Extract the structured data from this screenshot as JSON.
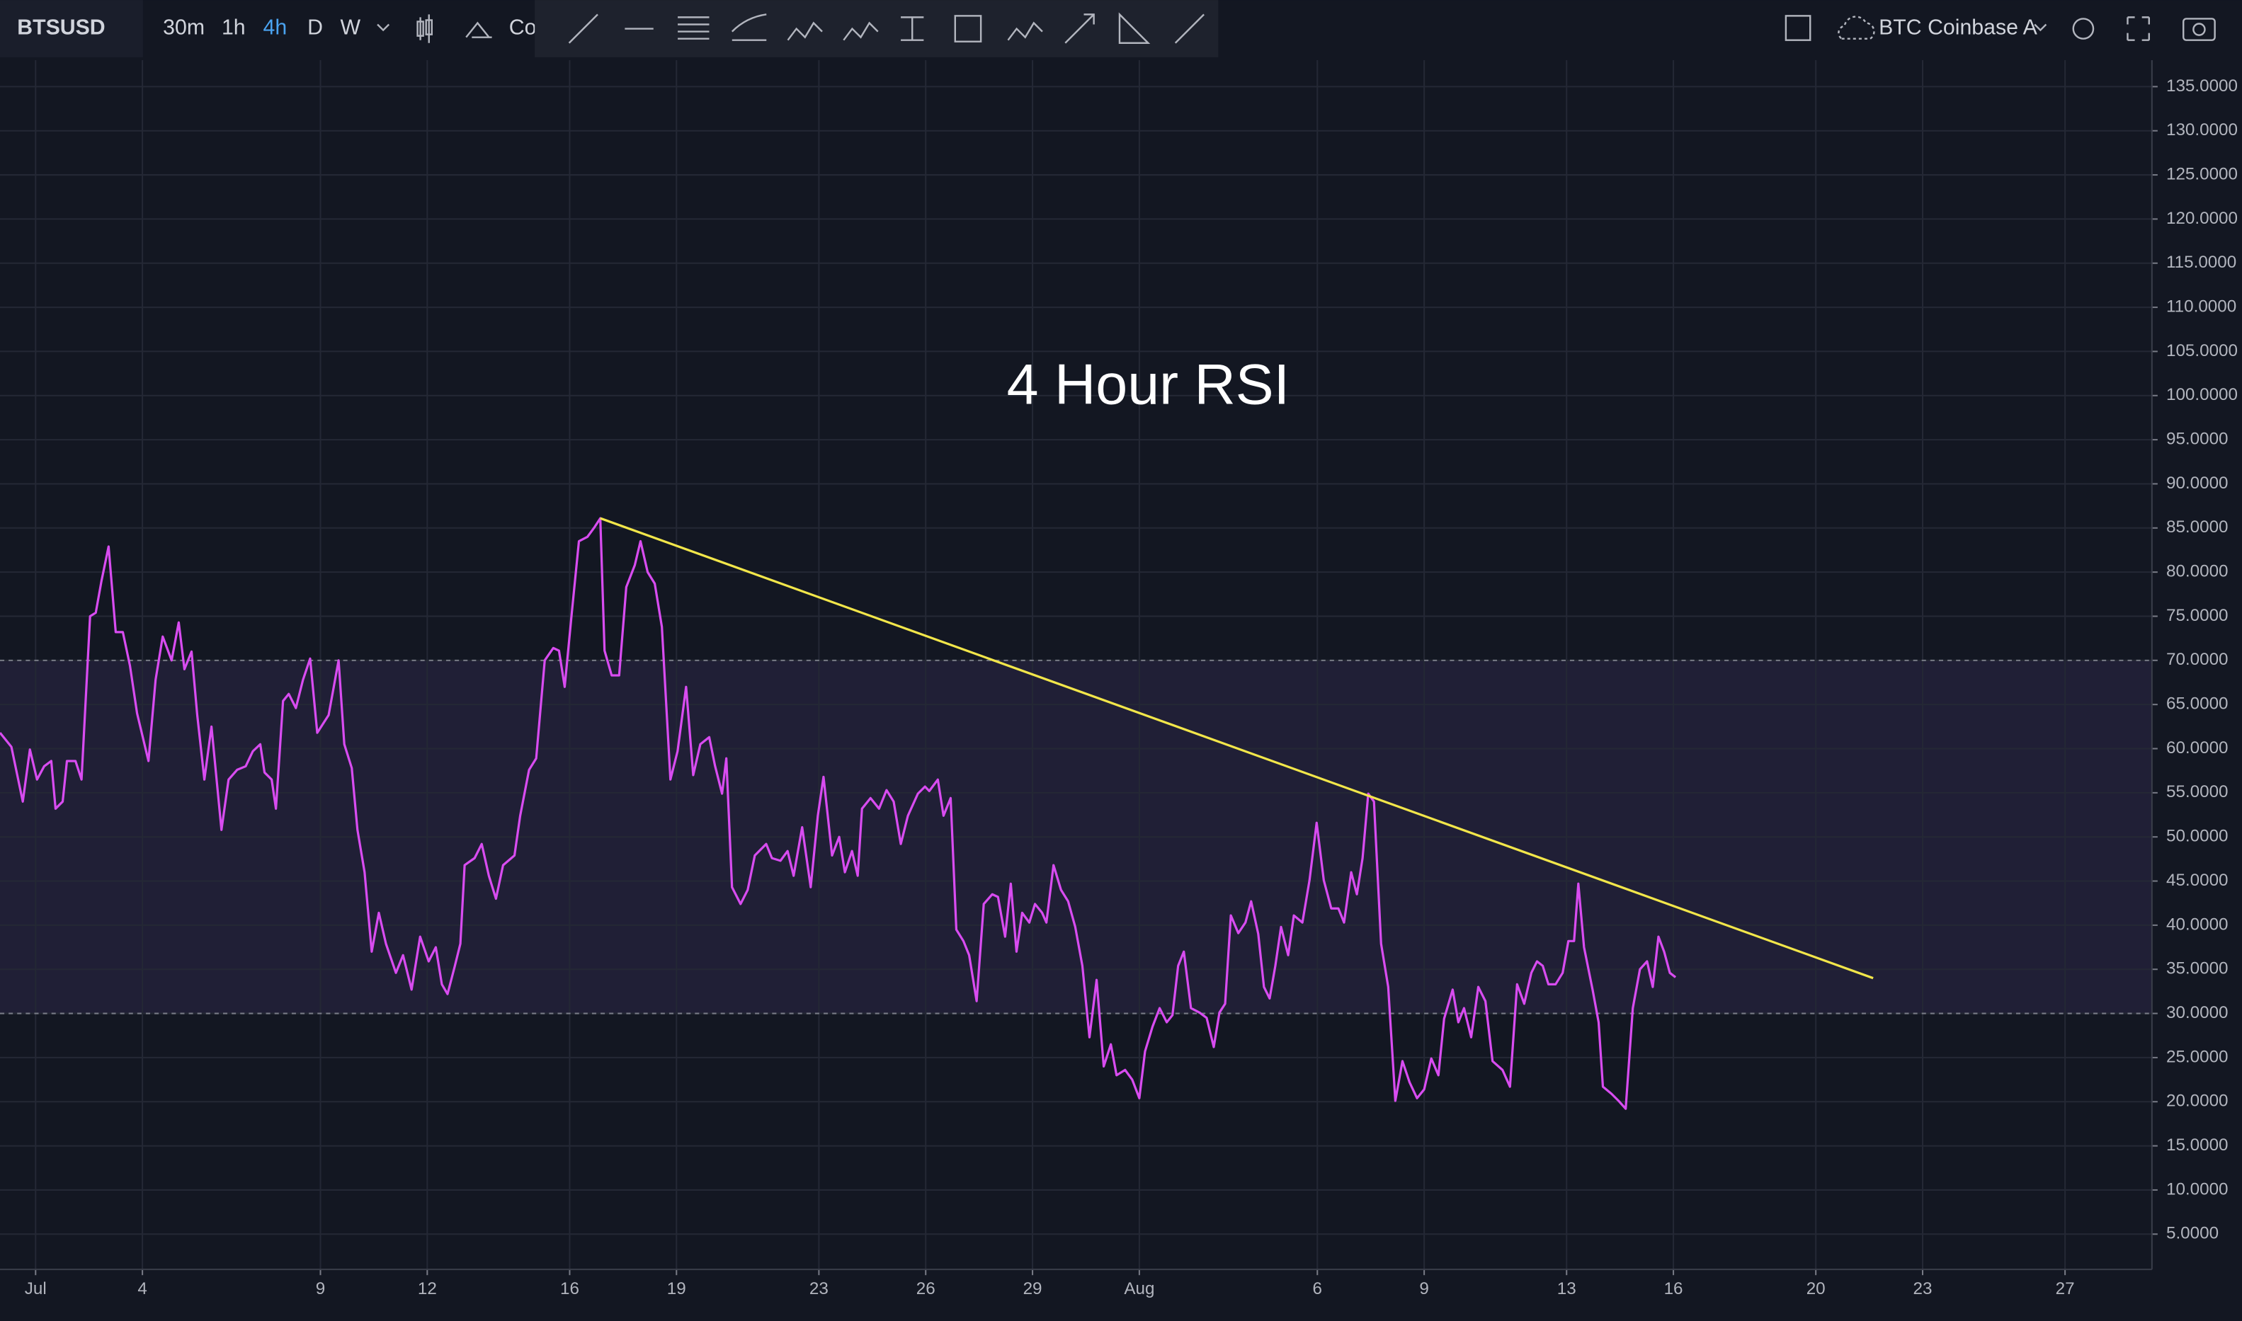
{
  "toolbar": {
    "symbol": "BTSUSD",
    "intervals": [
      "30m",
      "1h",
      "4h",
      "D",
      "W"
    ],
    "compare": "Co",
    "active_interval": "4h",
    "source": "BTC Coinbase A"
  },
  "chart_data": {
    "type": "line",
    "title": "4 Hour RSI",
    "series": [
      {
        "color": "#d84cf0",
        "x": [
          -1.0,
          -0.68,
          -0.36,
          -0.16,
          0.04,
          0.24,
          0.44,
          0.56,
          0.76,
          0.88,
          1.12,
          1.29,
          1.53,
          1.69,
          1.85,
          2.05,
          2.25,
          2.45,
          2.65,
          2.85,
          3.17,
          3.37,
          3.57,
          3.82,
          4.02,
          4.18,
          4.38,
          4.54,
          4.74,
          4.94,
          5.22,
          5.42,
          5.66,
          5.9,
          6.1,
          6.31,
          6.43,
          6.63,
          6.75,
          6.95,
          7.11,
          7.31,
          7.51,
          7.71,
          7.91,
          8.23,
          8.51,
          8.67,
          8.88,
          9.04,
          9.24,
          9.44,
          9.64,
          9.84,
          10.12,
          10.32,
          10.56,
          10.8,
          11.04,
          11.24,
          11.41,
          11.57,
          11.77,
          11.93,
          12.05,
          12.33,
          12.53,
          12.73,
          12.93,
          13.13,
          13.45,
          13.61,
          13.86,
          14.06,
          14.3,
          14.54,
          14.7,
          14.86,
          15.06,
          15.26,
          15.5,
          15.7,
          15.86,
          15.98,
          16.18,
          16.39,
          16.59,
          16.83,
          16.99,
          17.19,
          17.39,
          17.59,
          17.83,
          18.03,
          18.27,
          18.47,
          18.67,
          18.92,
          19.08,
          19.28,
          19.4,
          19.56,
          19.8,
          20.0,
          20.2,
          20.52,
          20.68,
          20.92,
          21.12,
          21.29,
          21.53,
          21.77,
          21.97,
          22.13,
          22.37,
          22.57,
          22.73,
          22.93,
          23.09,
          23.21,
          23.45,
          23.69,
          23.9,
          24.1,
          24.3,
          24.5,
          24.78,
          24.98,
          25.1,
          25.34,
          25.5,
          25.7,
          25.86,
          26.06,
          26.22,
          26.43,
          26.63,
          26.87,
          27.03,
          27.23,
          27.39,
          27.55,
          27.71,
          27.91,
          28.07,
          28.27,
          28.39,
          28.59,
          28.8,
          29.0,
          29.2,
          29.4,
          29.6,
          29.8,
          30.0,
          30.2,
          30.36,
          30.6,
          30.8,
          31.0,
          31.16,
          31.37,
          31.57,
          31.77,
          31.93,
          32.09,
          32.25,
          32.45,
          32.69,
          32.89,
          33.09,
          33.25,
          33.41,
          33.57,
          33.78,
          33.98,
          34.14,
          34.34,
          34.5,
          34.66,
          34.82,
          34.98,
          35.18,
          35.34,
          35.58,
          35.78,
          35.98,
          36.18,
          36.39,
          36.59,
          36.75,
          36.95,
          37.11,
          37.27,
          37.43,
          37.59,
          37.79,
          37.99,
          38.19,
          38.39,
          38.59,
          38.8,
          39.0,
          39.2,
          39.4,
          39.56,
          39.8,
          39.96,
          40.12,
          40.32,
          40.52,
          40.72,
          40.92,
          41.2,
          41.41,
          41.61,
          41.81,
          42.01,
          42.17,
          42.33,
          42.49,
          42.69,
          42.89,
          43.05,
          43.21,
          43.33,
          43.49,
          43.73,
          43.9,
          44.02,
          44.26,
          44.46,
          44.66,
          44.86,
          45.06,
          45.26,
          45.42,
          45.58,
          45.74,
          45.9,
          46.06
        ],
        "values": [
          61.8,
          60.2,
          54,
          59.9,
          56.5,
          58,
          58.6,
          53.2,
          54,
          58.6,
          58.6,
          56.5,
          75,
          75.4,
          79,
          82.9,
          73.2,
          73.2,
          69.4,
          64,
          58.6,
          67.8,
          72.7,
          70,
          74.3,
          69,
          71,
          63.8,
          56.5,
          62.5,
          50.8,
          56.5,
          57.6,
          58,
          59.7,
          60.5,
          57.3,
          56.5,
          53.2,
          65.4,
          66.2,
          64.6,
          67.8,
          70.2,
          61.8,
          63.8,
          70,
          60.5,
          57.8,
          50.8,
          46,
          37,
          41.4,
          37.9,
          34.6,
          36.6,
          32.7,
          38.7,
          35.9,
          37.5,
          33.3,
          32.2,
          35.3,
          37.9,
          46.8,
          47.6,
          49.2,
          45.6,
          43,
          46.8,
          47.9,
          52.4,
          57.6,
          58.9,
          70,
          71.4,
          71.1,
          67,
          75.4,
          83.5,
          84,
          85.1,
          86.1,
          71.1,
          68.3,
          68.3,
          78.3,
          80.8,
          83.5,
          80,
          78.7,
          73.8,
          56.5,
          59.7,
          67,
          57,
          60.5,
          61.3,
          58.1,
          54.9,
          58.9,
          44.3,
          42.4,
          44,
          47.9,
          49.2,
          47.6,
          47.3,
          48.4,
          45.6,
          51.1,
          44.3,
          52.4,
          56.8,
          47.9,
          50,
          46,
          48.4,
          45.6,
          53.2,
          54.4,
          53.2,
          55.3,
          54,
          49.2,
          52.4,
          54.9,
          55.7,
          55.2,
          56.5,
          52.4,
          54.4,
          39.5,
          38.2,
          36.6,
          31.4,
          42.4,
          43.5,
          43.2,
          38.7,
          44.7,
          37,
          41.4,
          40.3,
          42.4,
          41.4,
          40.3,
          46.8,
          44,
          42.7,
          39.8,
          35.4,
          27.3,
          33.8,
          24,
          26.5,
          23,
          23.6,
          22.5,
          20.4,
          25.7,
          28.5,
          30.6,
          29,
          29.8,
          35.4,
          37,
          30.6,
          30.1,
          29.5,
          26.2,
          30.1,
          31.1,
          41.1,
          39.1,
          40.3,
          42.7,
          39,
          33,
          31.7,
          35.4,
          39.8,
          36.6,
          41.1,
          40.3,
          45.1,
          51.6,
          45.1,
          41.9,
          41.9,
          40.3,
          46,
          43.5,
          47.6,
          54.9,
          54,
          37.9,
          33,
          20.1,
          24.6,
          22.2,
          20.4,
          21.4,
          24.9,
          23,
          29.4,
          32.7,
          29,
          30.6,
          27.3,
          33,
          31.4,
          24.6,
          23.6,
          21.7,
          33.3,
          31.1,
          34.6,
          35.9,
          35.4,
          33.3,
          33.3,
          34.6,
          38.2,
          38.2,
          44.7,
          37.5,
          32.7,
          29,
          21.7,
          20.9,
          20.1,
          19.2,
          30.6,
          35,
          35.9,
          33,
          38.7,
          37,
          34.6,
          34.1
        ]
      }
    ],
    "trendline": {
      "color": "#f2e64a",
      "x": [
        15.86,
        51.61
      ],
      "values": [
        86.1,
        34.0
      ]
    },
    "band": {
      "upper": 70,
      "lower": 30,
      "color": "#7e57c2"
    },
    "xlim": [
      -1,
      59.44
    ],
    "xticks": [
      {
        "value": 0,
        "label": "Jul"
      },
      {
        "value": 3,
        "label": "4"
      },
      {
        "value": 8,
        "label": "9"
      },
      {
        "value": 11,
        "label": "12"
      },
      {
        "value": 15,
        "label": "16"
      },
      {
        "value": 18,
        "label": "19"
      },
      {
        "value": 22,
        "label": "23"
      },
      {
        "value": 25,
        "label": "26"
      },
      {
        "value": 28,
        "label": "29"
      },
      {
        "value": 31,
        "label": "Aug"
      },
      {
        "value": 36,
        "label": "6"
      },
      {
        "value": 39,
        "label": "9"
      },
      {
        "value": 43,
        "label": "13"
      },
      {
        "value": 46,
        "label": "16"
      },
      {
        "value": 50,
        "label": "20"
      },
      {
        "value": 53,
        "label": "23"
      },
      {
        "value": 57,
        "label": "27"
      }
    ],
    "ylim": [
      1,
      138
    ],
    "yticks": [
      {
        "value": 5,
        "label": "5.0000"
      },
      {
        "value": 10,
        "label": "10.0000"
      },
      {
        "value": 15,
        "label": "15.0000"
      },
      {
        "value": 20,
        "label": "20.0000"
      },
      {
        "value": 25,
        "label": "25.0000"
      },
      {
        "value": 30,
        "label": "30.0000"
      },
      {
        "value": 35,
        "label": "35.0000"
      },
      {
        "value": 40,
        "label": "40.0000"
      },
      {
        "value": 45,
        "label": "45.0000"
      },
      {
        "value": 50,
        "label": "50.0000"
      },
      {
        "value": 55,
        "label": "55.0000"
      },
      {
        "value": 60,
        "label": "60.0000"
      },
      {
        "value": 65,
        "label": "65.0000"
      },
      {
        "value": 70,
        "label": "70.0000"
      },
      {
        "value": 75,
        "label": "75.0000"
      },
      {
        "value": 80,
        "label": "80.0000"
      },
      {
        "value": 85,
        "label": "85.0000"
      },
      {
        "value": 90,
        "label": "90.0000"
      },
      {
        "value": 95,
        "label": "95.0000"
      },
      {
        "value": 100,
        "label": "100.0000"
      },
      {
        "value": 105,
        "label": "105.0000"
      },
      {
        "value": 110,
        "label": "110.0000"
      },
      {
        "value": 115,
        "label": "115.0000"
      },
      {
        "value": 120,
        "label": "120.0000"
      },
      {
        "value": 125,
        "label": "125.0000"
      },
      {
        "value": 130,
        "label": "130.0000"
      },
      {
        "value": 135,
        "label": "135.0000"
      }
    ],
    "grid": true
  }
}
